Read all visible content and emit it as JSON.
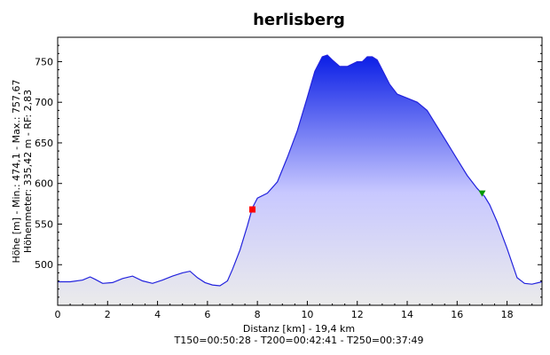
{
  "chart_data": {
    "type": "area",
    "title": "herlisberg",
    "xlabel": "Distanz [km] - 19,4 km",
    "footer": "T150=00:50:28 - T200=00:42:41 - T250=00:37:49",
    "ylabel_line1": "Höhe [m] - Min.: 474,1 - Max.: 757,67",
    "ylabel_line2": "Höhenmeter: 335,42 m - RF: 2,83",
    "xlim": [
      0,
      19.4
    ],
    "ylim": [
      450,
      780
    ],
    "x_ticks": [
      0,
      2,
      4,
      6,
      8,
      10,
      12,
      14,
      16,
      18
    ],
    "y_ticks": [
      500,
      550,
      600,
      650,
      700,
      750
    ],
    "grid": false,
    "colors": {
      "line": "#2222dd",
      "fill_top": "#0a1ee6",
      "fill_mid": "#c8c8ff",
      "fill_bottom": "#ebebeb",
      "start_marker": "#ff0000",
      "end_marker": "#009900"
    },
    "series": [
      {
        "x": [
          0,
          0.5,
          1.0,
          1.3,
          1.5,
          1.8,
          2.2,
          2.6,
          3.0,
          3.4,
          3.8,
          4.2,
          4.6,
          5.0,
          5.3,
          5.6,
          5.9,
          6.2,
          6.5,
          6.8,
          7.0,
          7.3,
          7.6,
          7.8,
          8.0,
          8.4,
          8.8,
          9.2,
          9.6,
          10.0,
          10.3,
          10.6,
          10.8,
          11.0,
          11.3,
          11.6,
          12.0,
          12.2,
          12.4,
          12.6,
          12.8,
          13.0,
          13.3,
          13.6,
          14.0,
          14.4,
          14.8,
          15.2,
          15.6,
          16.0,
          16.4,
          16.8,
          17.1,
          17.3,
          17.6,
          18.0,
          18.4,
          18.7,
          19.0,
          19.4
        ],
        "y": [
          479,
          479,
          481,
          485,
          482,
          477,
          478,
          483,
          486,
          480,
          477,
          481,
          486,
          490,
          492,
          484,
          478,
          475,
          474,
          480,
          494,
          518,
          548,
          570,
          582,
          588,
          602,
          632,
          665,
          706,
          738,
          756,
          758,
          752,
          744,
          744,
          750,
          750,
          756,
          756,
          752,
          740,
          722,
          710,
          705,
          700,
          690,
          670,
          650,
          630,
          610,
          594,
          584,
          574,
          553,
          520,
          484,
          477,
          476,
          479
        ]
      }
    ],
    "start_marker": {
      "x": 7.8,
      "y": 568
    },
    "end_marker": {
      "x": 17.0,
      "y": 587
    }
  }
}
